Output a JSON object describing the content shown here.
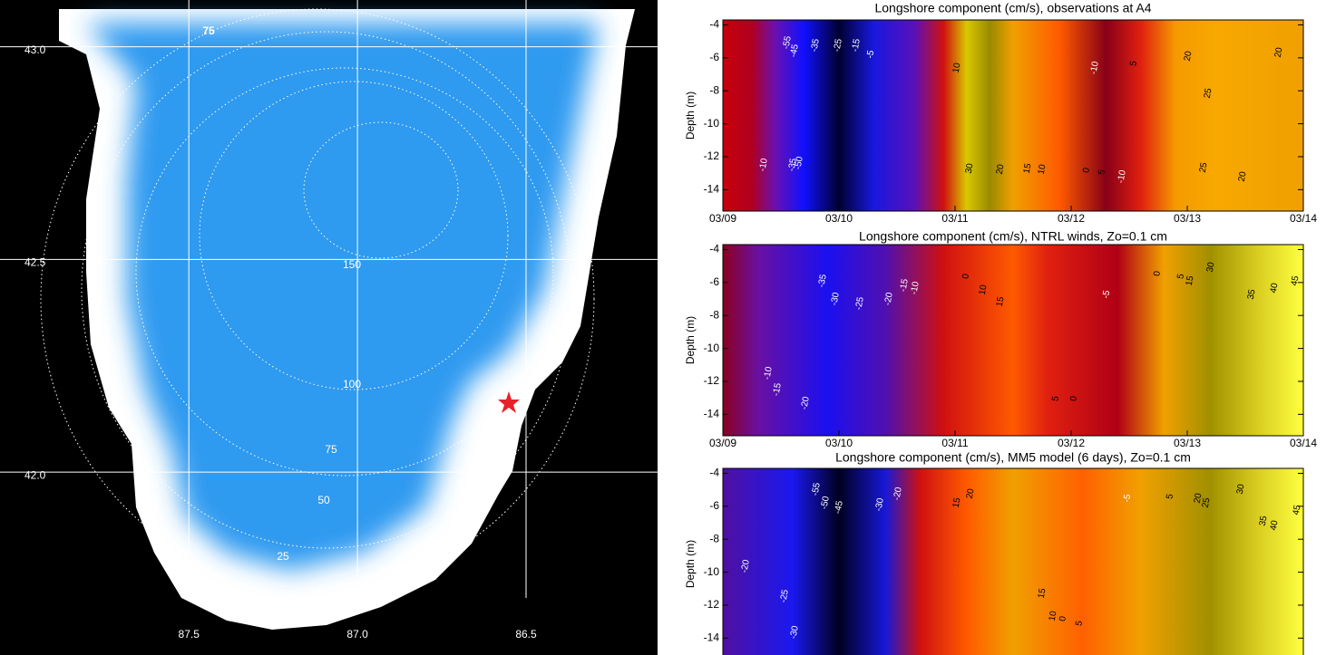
{
  "chart_data": [
    {
      "type": "map",
      "yticks": [
        {
          "value": 43,
          "label": "43.0"
        },
        42.5,
        {
          "value": 42,
          "label": "42.0"
        }
      ],
      "ylim": [
        41.57,
        43.11
      ],
      "xticks": [
        87.5,
        {
          "value": 87,
          "label": "87.0"
        },
        86.5
      ],
      "xlim": [
        88.06,
        86.11
      ],
      "contour_labels": [
        75,
        150,
        100,
        75,
        50,
        25
      ]
    },
    {
      "type": "contour",
      "title": "Longshore component (cm/s), observations at  A4",
      "ylabel": "Depth (m)",
      "yticks": [
        -4,
        -6,
        -8,
        -10,
        -12,
        -14
      ],
      "ylim": [
        -15.3,
        -3.7
      ],
      "categories": [
        "03/09",
        "03/10",
        "03/11",
        "03/12",
        "03/13",
        "03/14"
      ],
      "contour_labels": [
        -55,
        -45,
        -35,
        -25,
        -15,
        -5,
        10,
        -10,
        5,
        20,
        25,
        20,
        -50,
        -35,
        -10,
        30,
        20,
        15,
        10,
        0,
        5,
        -10,
        25,
        20
      ]
    },
    {
      "type": "contour",
      "title": "Longshore component (cm/s), NTRL winds, Zo=0.1 cm",
      "ylabel": "Depth (m)",
      "yticks": [
        -4,
        -6,
        -8,
        -10,
        -12,
        -14
      ],
      "ylim": [
        -15.3,
        -3.7
      ],
      "categories": [
        "03/09",
        "03/10",
        "03/11",
        "03/12",
        "03/13",
        "03/14"
      ],
      "contour_labels": [
        -35,
        -30,
        -25,
        -20,
        -15,
        -10,
        0,
        10,
        15,
        0,
        5,
        15,
        30,
        35,
        40,
        45,
        -5,
        -10,
        -15,
        -20,
        5,
        0
      ]
    },
    {
      "type": "contour",
      "title": "Longshore component (cm/s), MM5 model (6 days), Zo=0.1 cm",
      "ylabel": "Depth (m)",
      "yticks": [
        -4,
        -6,
        -8,
        -10,
        -12,
        -14
      ],
      "ylim": [
        -15.3,
        -3.7
      ],
      "contour_labels": [
        -55,
        -50,
        -45,
        -30,
        -20,
        15,
        20,
        -5,
        5,
        20,
        25,
        30,
        35,
        40,
        45,
        -20,
        -25,
        -30,
        15,
        10,
        0,
        5
      ]
    }
  ]
}
